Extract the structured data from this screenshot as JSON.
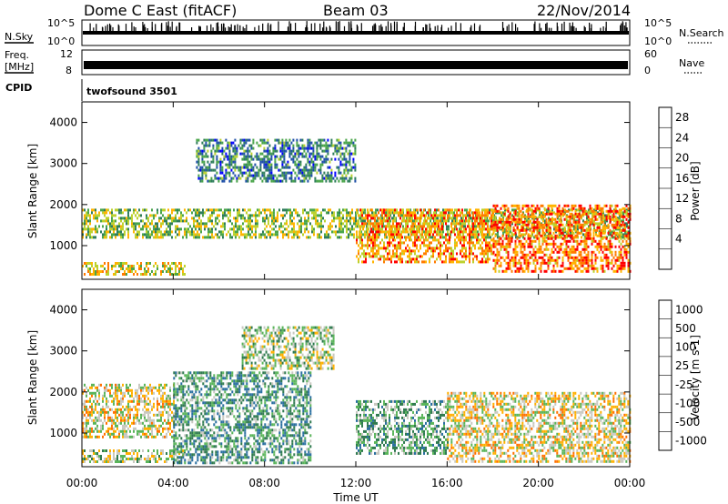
{
  "header": {
    "title": "Dome C East (fitACF)",
    "beam": "Beam 03",
    "date": "22/Nov/2014"
  },
  "strips": {
    "nsky_label": "N.Sky",
    "nsearch_label": "N.Search",
    "nsky_left_ticks": [
      "10^5",
      "10^0"
    ],
    "nsky_right_ticks": [
      "10^5",
      "10^0"
    ],
    "freq_label_1": "Freq.",
    "freq_label_2": "[MHz]",
    "freq_ticks": [
      "12",
      "8"
    ],
    "nave_label": "Nave",
    "nave_ticks": [
      "60",
      "0"
    ],
    "cpid_label": "CPID",
    "cpid_value": "twofsound 3501"
  },
  "panels": {
    "ylabel": "Slant Range [km]",
    "yticks": [
      "4000",
      "3000",
      "2000",
      "1000"
    ],
    "xlabel": "Time UT",
    "xticks": [
      "00:00",
      "04:00",
      "08:00",
      "12:00",
      "16:00",
      "20:00",
      "00:00"
    ]
  },
  "colorbars": {
    "power": {
      "label": "Power [dB]",
      "ticks": [
        "28",
        "24",
        "20",
        "16",
        "12",
        "8",
        "4"
      ],
      "colors": [
        "#0000ff",
        "#1f4fa8",
        "#2e7d5b",
        "#4aa54a",
        "#bcd12e",
        "#ffb400",
        "#ff7a00",
        "#ff0000"
      ]
    },
    "velocity": {
      "label": "Velocity [m s-1]",
      "ticks": [
        "1000",
        "500",
        "100",
        "25",
        "-25",
        "-100",
        "-500",
        "-1000"
      ],
      "colors": [
        "#1f3fbf",
        "#2a6fa0",
        "#2f7a4f",
        "#5ab55a",
        "#c8c8c0",
        "#ffb000",
        "#ff7000",
        "#ff0000"
      ]
    }
  },
  "chart_data": [
    {
      "type": "heatmap",
      "title": "Power",
      "xlabel": "Time UT",
      "ylabel": "Slant Range [km]",
      "xlim": [
        "00:00",
        "24:00"
      ],
      "ylim": [
        180,
        4500
      ],
      "colorbar": {
        "label": "Power [dB]",
        "range": [
          0,
          32
        ]
      },
      "echo_bands": [
        {
          "time_start": "00:00",
          "time_end": "04:30",
          "range_start": 300,
          "range_end": 600,
          "approx_value": 20
        },
        {
          "time_start": "00:00",
          "time_end": "24:00",
          "range_start": 1200,
          "range_end": 1900,
          "approx_value": 16
        },
        {
          "time_start": "05:00",
          "time_end": "12:00",
          "range_start": 2600,
          "range_end": 3600,
          "approx_value": 10
        },
        {
          "time_start": "12:00",
          "time_end": "18:00",
          "range_start": 600,
          "range_end": 1900,
          "approx_value": 24
        },
        {
          "time_start": "18:00",
          "time_end": "24:00",
          "range_start": 400,
          "range_end": 2000,
          "approx_value": 26
        }
      ]
    },
    {
      "type": "heatmap",
      "title": "Velocity",
      "xlabel": "Time UT",
      "ylabel": "Slant Range [km]",
      "xlim": [
        "00:00",
        "24:00"
      ],
      "ylim": [
        180,
        4500
      ],
      "colorbar": {
        "label": "Velocity [m s-1]",
        "range": [
          -1000,
          1000
        ]
      },
      "echo_bands": [
        {
          "time_start": "00:00",
          "time_end": "04:30",
          "range_start": 300,
          "range_end": 600,
          "approx_value": 50
        },
        {
          "time_start": "00:00",
          "time_end": "04:00",
          "range_start": 900,
          "range_end": 2200,
          "approx_value": 200
        },
        {
          "time_start": "04:00",
          "time_end": "10:00",
          "range_start": 300,
          "range_end": 2500,
          "approx_value": -300
        },
        {
          "time_start": "07:00",
          "time_end": "11:00",
          "range_start": 2600,
          "range_end": 3600,
          "approx_value": 0
        },
        {
          "time_start": "12:00",
          "time_end": "16:00",
          "range_start": 500,
          "range_end": 1800,
          "approx_value": -200
        },
        {
          "time_start": "16:00",
          "time_end": "24:00",
          "range_start": 300,
          "range_end": 2000,
          "approx_value": 200
        }
      ]
    }
  ]
}
